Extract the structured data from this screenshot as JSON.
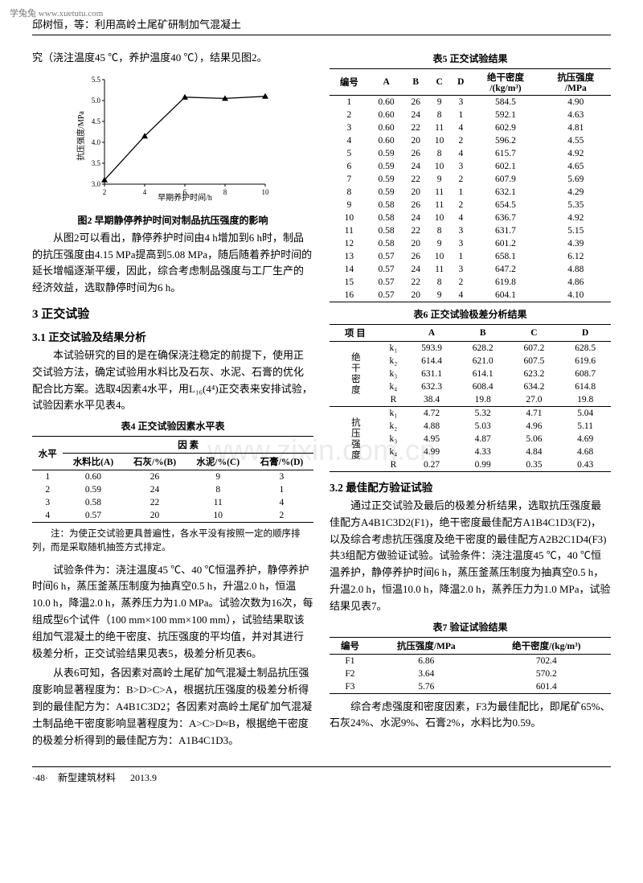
{
  "watermark_tl": "学兔兔  www.xuetutu.com",
  "center_wm": "www.zixin.com.cn",
  "header_text": "邱树恒，等：利用高岭土尾矿研制加气混凝土",
  "intro_line": "究（浇注温度45 ℃，养护温度40 ℃），结果见图2。",
  "fig2": {
    "type": "line",
    "x": [
      2,
      4,
      6,
      8,
      10
    ],
    "y": [
      3.1,
      4.15,
      5.08,
      5.05,
      5.1
    ],
    "xlim": [
      2,
      10
    ],
    "ylim": [
      3.0,
      5.5
    ],
    "xticks": [
      2,
      4,
      6,
      8,
      10
    ],
    "yticks": [
      3.0,
      3.5,
      4.0,
      4.5,
      5.0,
      5.5
    ],
    "xlabel": "早期养护时间/h",
    "ylabel": "抗压强度/MPa",
    "line_color": "#000000",
    "marker": "triangle",
    "bg": "#ffffff"
  },
  "fig2_caption": "图2  早期静停养护时间对制品抗压强度的影响",
  "para_after_fig2": "从图2可以看出，静停养护时间由4 h增加到6 h时，制品的抗压强度由4.15 MPa提高到5.08 MPa，随后随着养护时间的延长增幅逐渐平缓，因此，综合考虑制品强度与工厂生产的经济效益，选取静停时间为6 h。",
  "sec3": "3  正交试验",
  "sec31": "3.1  正交试验及结果分析",
  "para31a": "本试验研究的目的是在确保浇注稳定的前提下，使用正交试验方法，确定试验用水料比及石灰、水泥、石膏的优化配合比方案。选取4因素4水平，用L₁₆(4⁴)正交表来安排试验，试验因素水平见表4。",
  "table4_caption": "表4  正交试验因素水平表",
  "table4": {
    "head_group": "因  素",
    "head_row1": "水平",
    "cols": [
      "水料比(A)",
      "石灰/%(B)",
      "水泥/%(C)",
      "石膏/%(D)"
    ],
    "rows": [
      [
        "1",
        "0.60",
        "26",
        "9",
        "3"
      ],
      [
        "2",
        "0.59",
        "24",
        "8",
        "1"
      ],
      [
        "3",
        "0.58",
        "22",
        "11",
        "4"
      ],
      [
        "4",
        "0.57",
        "20",
        "10",
        "2"
      ]
    ]
  },
  "table4_note": "注：为使正交试验更具普遍性，各水平没有按照一定的顺序排列，而是采取随机抽签方式排定。",
  "para31b": "试验条件为：浇注温度45 ℃、40 ℃恒温养护，静停养护时间6 h，蒸压釜蒸压制度为抽真空0.5 h，升温2.0 h，恒温10.0 h，降温2.0 h，蒸养压力为1.0 MPa。试验次数为16次，每组成型6个试件（100 mm×100 mm×100 mm），试验结果取该组加气混凝土的绝干密度、抗压强度的平均值，并对其进行极差分析，正交试验结果见表5，极差分析见表6。",
  "para31c": "从表6可知，各因素对高岭土尾矿加气混凝土制品抗压强度影响显著程度为：B>D>C>A，根据抗压强度的极差分析得到的最佳配方为：A4B1C3D2；各因素对高岭土尾矿加气混凝土制品绝干密度影响显著程度为：A>C>D≈B，根据绝干密度的极差分析得到的最佳配方为：A1B4C1D3。",
  "table5_caption": "表5  正交试验结果",
  "table5": {
    "cols": [
      "编号",
      "A",
      "B",
      "C",
      "D",
      "绝干密度 /(kg/m³)",
      "抗压强度 /MPa"
    ],
    "rows": [
      [
        "1",
        "0.60",
        "26",
        "9",
        "3",
        "584.5",
        "4.90"
      ],
      [
        "2",
        "0.60",
        "24",
        "8",
        "1",
        "592.1",
        "4.63"
      ],
      [
        "3",
        "0.60",
        "22",
        "11",
        "4",
        "602.9",
        "4.81"
      ],
      [
        "4",
        "0.60",
        "20",
        "10",
        "2",
        "596.2",
        "4.55"
      ],
      [
        "5",
        "0.59",
        "26",
        "8",
        "4",
        "615.7",
        "4.92"
      ],
      [
        "6",
        "0.59",
        "24",
        "10",
        "3",
        "602.1",
        "4.65"
      ],
      [
        "7",
        "0.59",
        "22",
        "9",
        "2",
        "607.9",
        "5.69"
      ],
      [
        "8",
        "0.59",
        "20",
        "11",
        "1",
        "632.1",
        "4.29"
      ],
      [
        "9",
        "0.58",
        "26",
        "11",
        "2",
        "654.5",
        "5.35"
      ],
      [
        "10",
        "0.58",
        "24",
        "10",
        "4",
        "636.7",
        "4.92"
      ],
      [
        "11",
        "0.58",
        "22",
        "8",
        "3",
        "631.7",
        "5.15"
      ],
      [
        "12",
        "0.58",
        "20",
        "9",
        "3",
        "601.2",
        "4.39"
      ],
      [
        "13",
        "0.57",
        "26",
        "10",
        "1",
        "658.1",
        "6.12"
      ],
      [
        "14",
        "0.57",
        "24",
        "11",
        "3",
        "647.2",
        "4.88"
      ],
      [
        "15",
        "0.57",
        "22",
        "8",
        "2",
        "619.8",
        "4.86"
      ],
      [
        "16",
        "0.57",
        "20",
        "9",
        "4",
        "604.1",
        "4.10"
      ]
    ]
  },
  "table6_caption": "表6  正交试验极差分析结果",
  "table6": {
    "head": [
      "项  目",
      "",
      "A",
      "B",
      "C",
      "D"
    ],
    "group1_label": "绝干密度",
    "group1": [
      [
        "k₁",
        "593.9",
        "628.2",
        "607.2",
        "628.5"
      ],
      [
        "k₂",
        "614.4",
        "621.0",
        "607.5",
        "619.6"
      ],
      [
        "k₃",
        "631.1",
        "614.1",
        "623.2",
        "608.7"
      ],
      [
        "k₄",
        "632.3",
        "608.4",
        "634.2",
        "614.8"
      ],
      [
        "R",
        "38.4",
        "19.8",
        "27.0",
        "19.8"
      ]
    ],
    "group2_label": "抗压强度",
    "group2": [
      [
        "k₁",
        "4.72",
        "5.32",
        "4.71",
        "5.04"
      ],
      [
        "k₂",
        "4.88",
        "5.03",
        "4.96",
        "5.11"
      ],
      [
        "k₃",
        "4.95",
        "4.87",
        "5.06",
        "4.69"
      ],
      [
        "k₄",
        "4.99",
        "4.33",
        "4.84",
        "4.68"
      ],
      [
        "R",
        "0.27",
        "0.99",
        "0.35",
        "0.43"
      ]
    ]
  },
  "sec32": "3.2  最佳配方验证试验",
  "para32a": "通过正交试验及最后的极差分析结果，选取抗压强度最佳配方A4B1C3D2(F1)，绝干密度最佳配方A1B4C1D3(F2)，以及综合考虑抗压强度及绝干密度的最佳配方A2B2C1D4(F3)共3组配方做验证试验。试验条件：浇注温度45 ℃，40 ℃恒温养护，静停养护时间6 h，蒸压釜蒸压制度为抽真空0.5 h，升温2.0 h，恒温10.0 h，降温2.0 h，蒸养压力为1.0 MPa，试验结果见表7。",
  "table7_caption": "表7  验证试验结果",
  "table7": {
    "cols": [
      "编号",
      "抗压强度/MPa",
      "绝干密度/(kg/m³)"
    ],
    "rows": [
      [
        "F1",
        "6.86",
        "702.4"
      ],
      [
        "F2",
        "3.64",
        "570.2"
      ],
      [
        "F3",
        "5.76",
        "601.4"
      ]
    ]
  },
  "para32b": "综合考虑强度和密度因素，F3为最佳配比，即尾矿65%、石灰24%、水泥9%、石膏2%，水料比为0.59。",
  "footer_page": "·48·",
  "footer_journal": "新型建筑材料",
  "footer_date": "2013.9"
}
